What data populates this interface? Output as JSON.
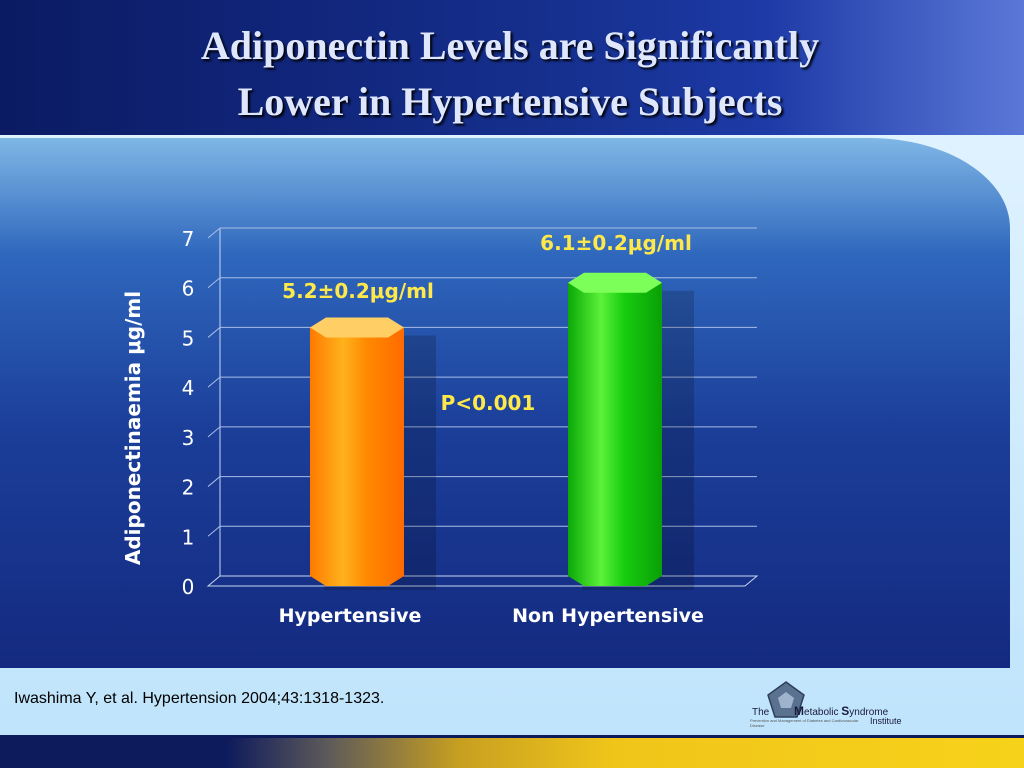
{
  "slide": {
    "title_line1": "Adiponectin Levels are Significantly",
    "title_line2": "Lower in Hypertensive Subjects",
    "citation": "Iwashima Y, et al. Hypertension 2004;43:1318-1323.",
    "logo": {
      "pre": "The",
      "name_m": "M",
      "name_rest1": "etabolic ",
      "name_s": "S",
      "name_rest2": "yndrome",
      "institute": "Institute",
      "tagline": "Prevention and Management of Diabetes and Cardiovascular Disease"
    }
  },
  "chart_data": {
    "type": "bar",
    "categories": [
      "Hypertensive",
      "Non Hypertensive"
    ],
    "values": [
      5.2,
      6.1
    ],
    "data_labels": [
      "5.2±0.2μg/ml",
      "6.1±0.2μg/ml"
    ],
    "annotation": "P<0.001",
    "ylabel": "Adiponectinaemia μg/ml",
    "ylim": [
      0,
      7
    ],
    "yticks": [
      "0",
      "1",
      "2",
      "3",
      "4",
      "5",
      "6",
      "7"
    ],
    "grid": true,
    "colors": {
      "hypertensive": "#ff8c00",
      "non_hypertensive": "#16c80e",
      "label": "#ffe94a"
    }
  }
}
